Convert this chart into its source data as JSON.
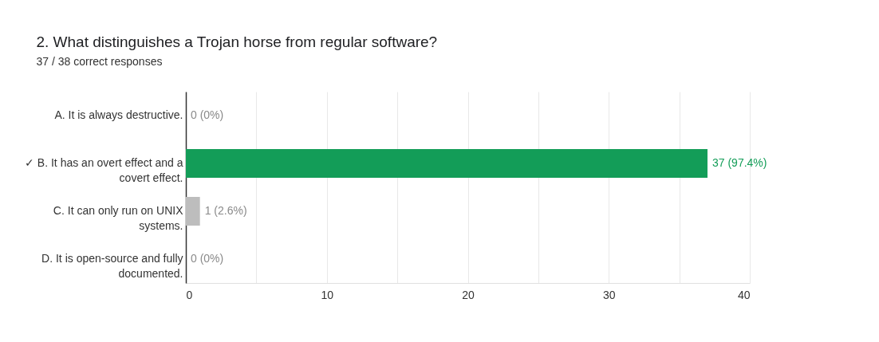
{
  "chart_data": {
    "type": "bar",
    "orientation": "horizontal",
    "title": "2.  What distinguishes a Trojan horse from regular software?",
    "subtitle": "37 / 38 correct responses",
    "categories": [
      "A. It is always destructive.",
      "✓ B. It has an overt effect and a covert effect.",
      "C. It can only run on UNIX systems.",
      "D. It is open-source and fully documented."
    ],
    "values": [
      0,
      37,
      1,
      0
    ],
    "colors": [
      "#bdbdbd",
      "#139d58",
      "#bdbdbd",
      "#bdbdbd"
    ],
    "value_labels": [
      "0 (0%)",
      "37 (97.4%)",
      "1 (2.6%)",
      "0 (0%)"
    ],
    "xlim": [
      0,
      40
    ],
    "xticks": [
      0,
      {
        "value": 5,
        "label": null
      },
      10,
      {
        "value": 15,
        "label": null
      },
      20,
      {
        "value": 25,
        "label": null
      },
      30,
      {
        "value": 35,
        "label": null
      },
      40
    ],
    "grid": "x"
  }
}
